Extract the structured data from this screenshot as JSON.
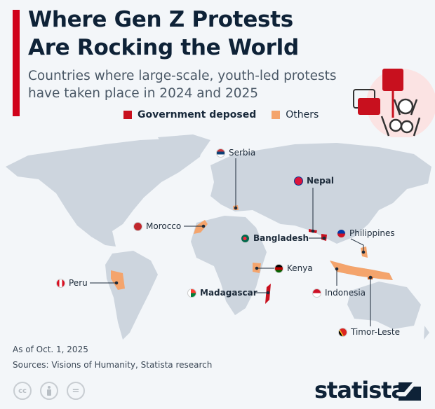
{
  "title": "Where Gen Z Protests\nAre Rocking the World",
  "title_line1": "Where Gen Z Protests",
  "title_line2": "Are Rocking the World",
  "subtitle_line1": "Countries where large-scale, youth-led protests",
  "subtitle_line2": "have taken place in 2024 and 2025",
  "legend": [
    {
      "label": "Government deposed",
      "color": "#c8101e"
    },
    {
      "label": "Others",
      "color": "#f4a46c"
    }
  ],
  "countries": [
    {
      "name": "Serbia",
      "category": "Others"
    },
    {
      "name": "Nepal",
      "category": "Government deposed"
    },
    {
      "name": "Morocco",
      "category": "Others"
    },
    {
      "name": "Bangladesh",
      "category": "Government deposed"
    },
    {
      "name": "Philippines",
      "category": "Others"
    },
    {
      "name": "Kenya",
      "category": "Others"
    },
    {
      "name": "Peru",
      "category": "Others"
    },
    {
      "name": "Madagascar",
      "category": "Government deposed"
    },
    {
      "name": "Indonesia",
      "category": "Others"
    },
    {
      "name": "Timor-Leste",
      "category": "Others"
    }
  ],
  "footer": {
    "as_of": "As of Oct. 1, 2025",
    "sources": "Sources: Visions of Humanity, Statista research"
  },
  "license_icons": [
    "cc-icon",
    "by-icon",
    "nd-icon"
  ],
  "license_text": {
    "cc": "cc",
    "nd": "="
  },
  "brand": "statista",
  "colors": {
    "land": "#cdd5de",
    "deposed": "#c8101e",
    "others": "#f4a46c",
    "title": "#0e2237"
  }
}
